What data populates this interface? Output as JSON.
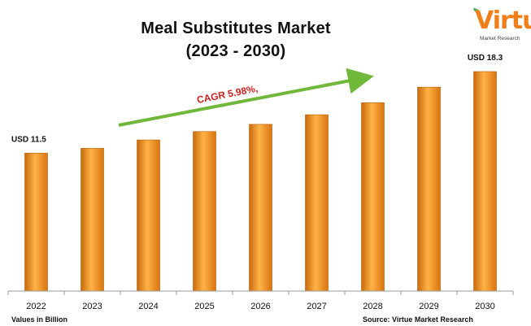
{
  "header": {
    "title_line1": "Meal Substitutes Market",
    "title_line2": "(2023 - 2030)"
  },
  "logo": {
    "text": "Virtue",
    "subtitle": "Market Research",
    "color": "#f07f1a"
  },
  "footer": {
    "units_note": "Values in Billion",
    "source_note": "Source: Virtue Market Research"
  },
  "chart_data": {
    "type": "bar",
    "categories": [
      "2022",
      "2023",
      "2024",
      "2025",
      "2026",
      "2027",
      "2028",
      "2029",
      "2030"
    ],
    "values": [
      11.5,
      11.9,
      12.6,
      13.3,
      13.9,
      14.7,
      15.7,
      17.0,
      18.3
    ],
    "ylim": [
      0,
      18.3
    ],
    "grid": false,
    "legend": "none",
    "bar_color": "#f28a16",
    "annotations": {
      "first_label": "USD 11.5",
      "last_label": "USD 18.3",
      "cagr_label": "CAGR 5.98%,"
    },
    "arrow_color": "#6fb83a",
    "cagr_color": "#d01f1f"
  }
}
